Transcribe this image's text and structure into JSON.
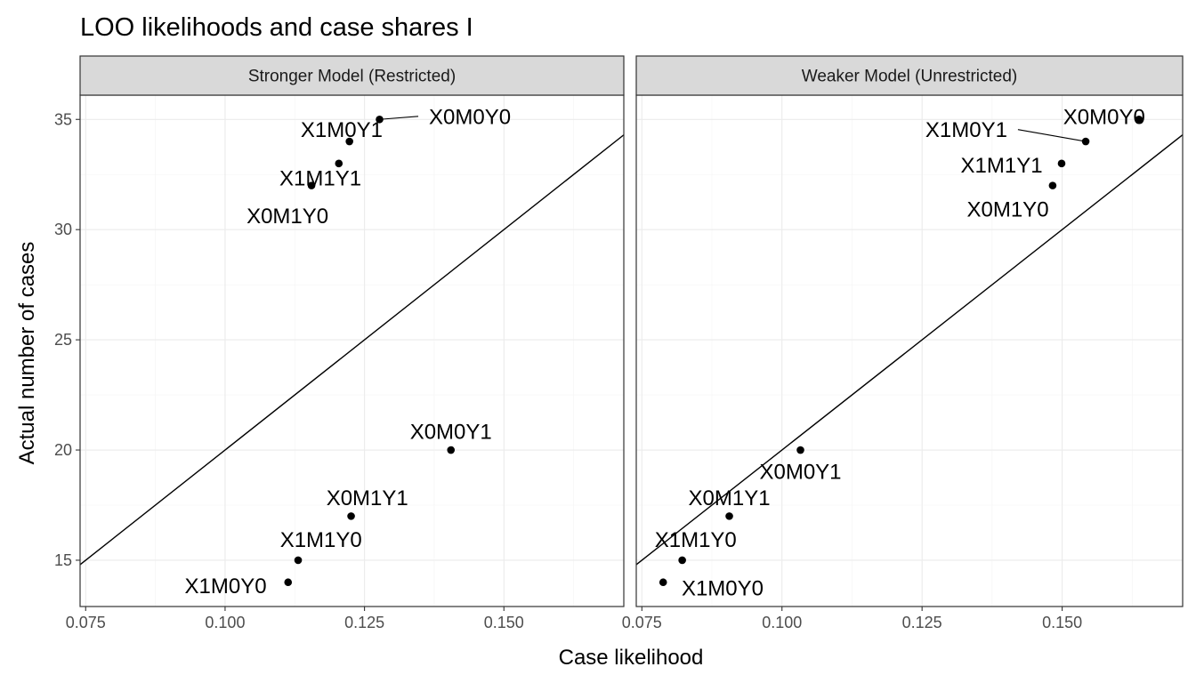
{
  "chart_data": {
    "type": "scatter",
    "title": "LOO likelihoods and case shares I",
    "xlabel": "Case likelihood",
    "ylabel": "Actual number of cases",
    "xlim": [
      0.074,
      0.1715
    ],
    "ylim": [
      12.9,
      36.1
    ],
    "x_ticks": [
      0.075,
      0.1,
      0.125,
      0.15
    ],
    "x_tick_labels": [
      "0.075",
      "0.100",
      "0.125",
      "0.150"
    ],
    "y_ticks": [
      15,
      20,
      25,
      30,
      35
    ],
    "y_tick_labels": [
      "15",
      "20",
      "25",
      "30",
      "35"
    ],
    "grid": true,
    "reference_line": {
      "slope": 200,
      "intercept": 0
    },
    "panels": [
      {
        "strip": "Stronger Model (Restricted)",
        "points": [
          {
            "label": "X0M0Y0",
            "x": 0.1277,
            "y": 35,
            "label_x": 0.1439,
            "label_y": 35.1,
            "leader": true
          },
          {
            "label": "X1M0Y1",
            "x": 0.1223,
            "y": 34,
            "label_x": 0.1209,
            "label_y": 34.5,
            "leader": false
          },
          {
            "label": "X1M1Y1",
            "x": 0.1204,
            "y": 33,
            "label_x": 0.1171,
            "label_y": 32.3,
            "leader": false
          },
          {
            "label": "X0M1Y0",
            "x": 0.1155,
            "y": 32,
            "label_x": 0.1112,
            "label_y": 30.6,
            "leader": false
          },
          {
            "label": "X0M0Y1",
            "x": 0.1405,
            "y": 20,
            "label_x": 0.1405,
            "label_y": 20.8,
            "leader": false
          },
          {
            "label": "X0M1Y1",
            "x": 0.1226,
            "y": 17,
            "label_x": 0.1255,
            "label_y": 17.8,
            "leader": false
          },
          {
            "label": "X1M1Y0",
            "x": 0.1131,
            "y": 15,
            "label_x": 0.1172,
            "label_y": 15.9,
            "leader": false
          },
          {
            "label": "X1M0Y0",
            "x": 0.1113,
            "y": 14,
            "label_x": 0.1001,
            "label_y": 13.8,
            "leader": false
          }
        ]
      },
      {
        "strip": "Weaker Model  (Unrestricted)",
        "points": [
          {
            "label": "X0M0Y0",
            "x": 0.1637,
            "y": 35,
            "label_x": 0.1575,
            "label_y": 35.1,
            "leader": false
          },
          {
            "label": "X1M0Y1",
            "x": 0.1542,
            "y": 34,
            "label_x": 0.1329,
            "label_y": 34.5,
            "leader": true
          },
          {
            "label": "X1M1Y1",
            "x": 0.1499,
            "y": 33,
            "label_x": 0.1392,
            "label_y": 32.9,
            "leader": false
          },
          {
            "label": "X0M1Y0",
            "x": 0.1483,
            "y": 32,
            "label_x": 0.1403,
            "label_y": 30.9,
            "leader": false
          },
          {
            "label": "X0M0Y1",
            "x": 0.1033,
            "y": 20,
            "label_x": 0.1033,
            "label_y": 19.0,
            "leader": false
          },
          {
            "label": "X0M1Y1",
            "x": 0.0906,
            "y": 17,
            "label_x": 0.0906,
            "label_y": 17.8,
            "leader": false
          },
          {
            "label": "X1M1Y0",
            "x": 0.0822,
            "y": 15,
            "label_x": 0.0846,
            "label_y": 15.9,
            "leader": false
          },
          {
            "label": "X1M0Y0",
            "x": 0.0788,
            "y": 14,
            "label_x": 0.0894,
            "label_y": 13.7,
            "leader": false
          }
        ]
      }
    ]
  }
}
